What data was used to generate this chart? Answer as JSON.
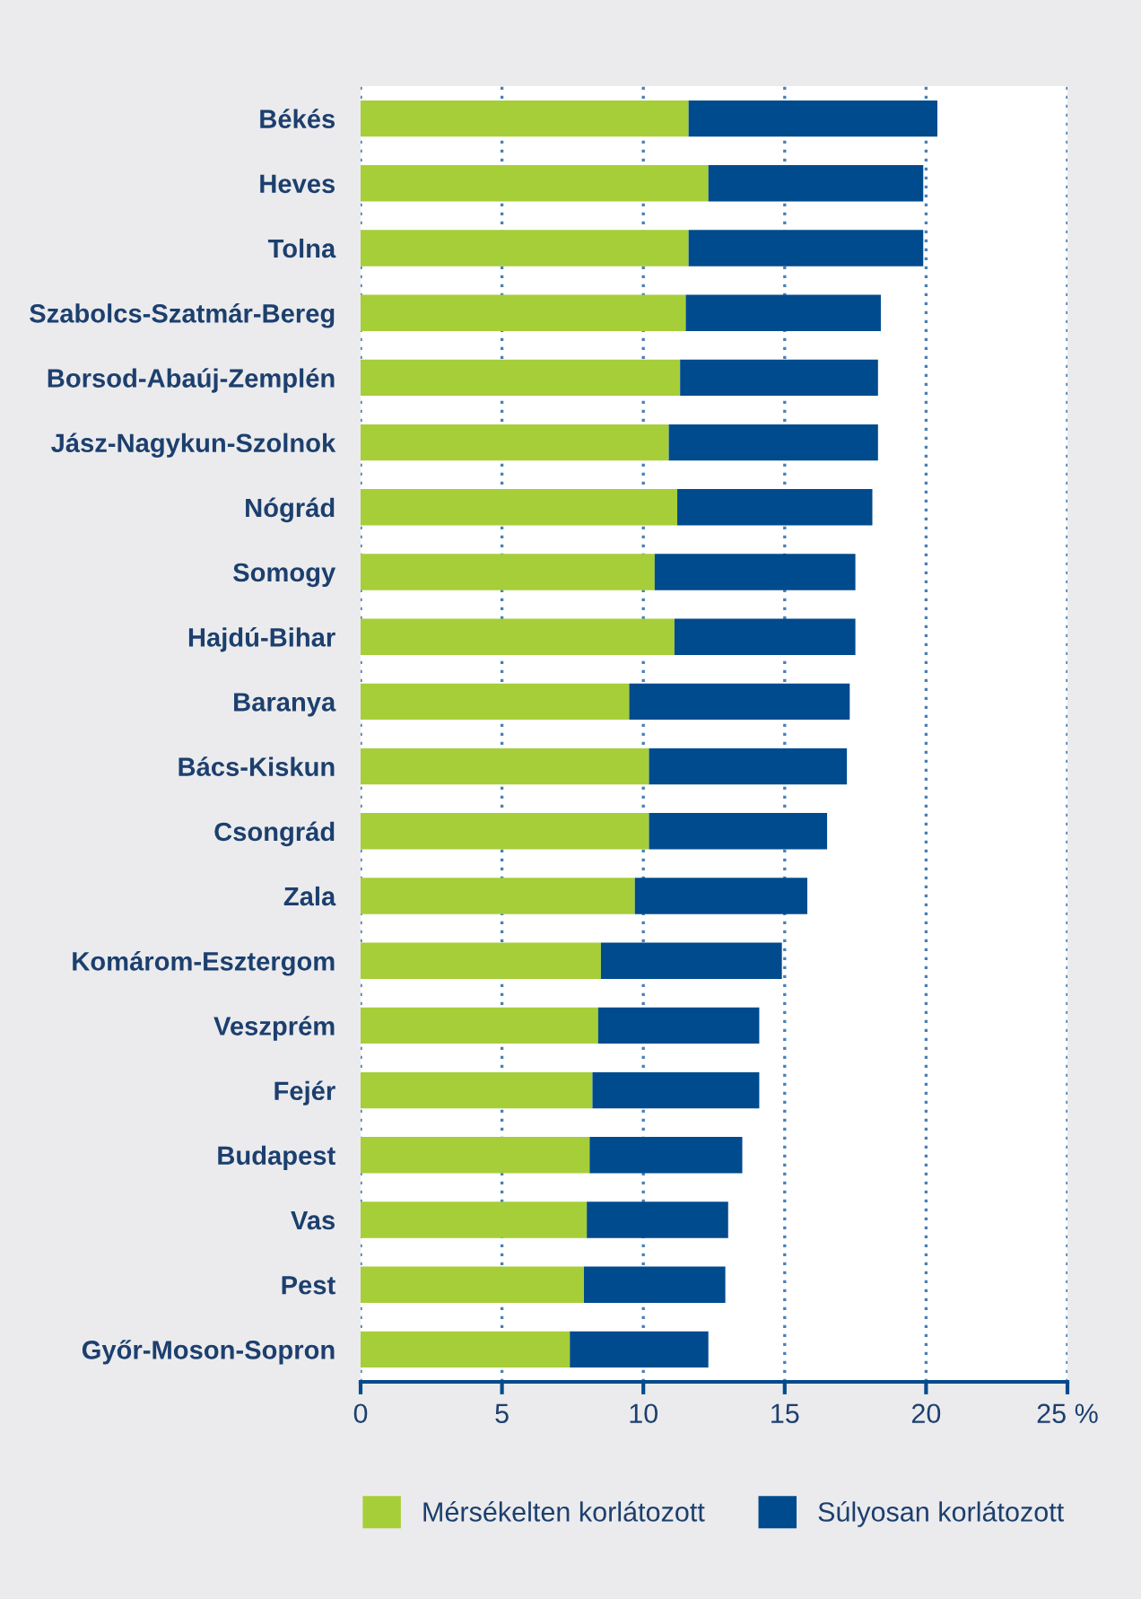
{
  "chart_data": {
    "type": "bar",
    "orientation": "horizontal",
    "stacked": true,
    "categories": [
      "Békés",
      "Heves",
      "Tolna",
      "Szabolcs-Szatmár-Bereg",
      "Borsod-Abaúj-Zemplén",
      "Jász-Nagykun-Szolnok",
      "Nógrád",
      "Somogy",
      "Hajdú-Bihar",
      "Baranya",
      "Bács-Kiskun",
      "Csongrád",
      "Zala",
      "Komárom-Esztergom",
      "Veszprém",
      "Fejér",
      "Budapest",
      "Vas",
      "Pest",
      "Győr-Moson-Sopron"
    ],
    "series": [
      {
        "name": "Mérsékelten korlátozott",
        "color": "#a6ce39",
        "values": [
          11.6,
          12.3,
          11.6,
          11.5,
          11.3,
          10.9,
          11.2,
          10.4,
          11.1,
          9.5,
          10.2,
          10.2,
          9.7,
          8.5,
          8.4,
          8.2,
          8.1,
          8.0,
          7.9,
          7.4
        ]
      },
      {
        "name": "Súlyosan korlátozott",
        "color": "#004b8d",
        "values": [
          8.8,
          7.6,
          8.3,
          6.9,
          7.0,
          7.4,
          6.9,
          7.1,
          6.4,
          7.8,
          7.0,
          6.3,
          6.1,
          6.4,
          5.7,
          5.9,
          5.4,
          5.0,
          5.0,
          4.9
        ]
      }
    ],
    "xlim": [
      0,
      25
    ],
    "xticks": [
      0,
      5,
      10,
      15,
      20,
      {
        "value": 25,
        "label": "25 %"
      }
    ],
    "grid": "x",
    "legend": "bottom"
  }
}
